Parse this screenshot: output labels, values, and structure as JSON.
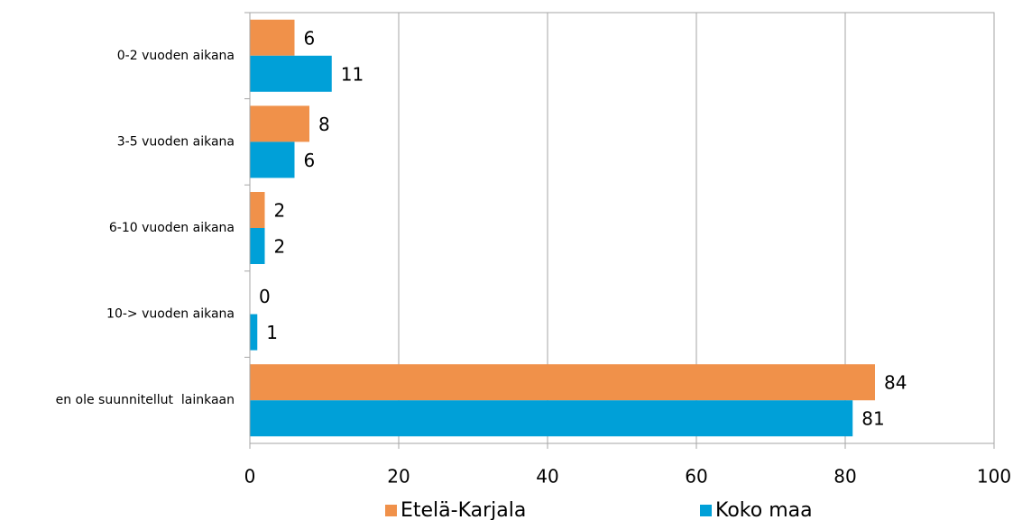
{
  "chart_data": {
    "type": "hbar",
    "categories": [
      "0-2 vuoden aikana",
      "3-5 vuoden aikana",
      "6-10 vuoden aikana",
      "10-> vuoden aikana",
      "en ole suunnitellut  lainkaan"
    ],
    "series": [
      {
        "name": "Etelä-Karjala",
        "color": "#f0914a",
        "values": [
          6,
          8,
          2,
          0,
          84
        ]
      },
      {
        "name": "Koko maa",
        "color": "#00a0d8",
        "values": [
          11,
          6,
          2,
          1,
          81
        ]
      }
    ],
    "xlim": [
      0,
      100
    ],
    "xticks": [
      0,
      20,
      40,
      60,
      80,
      100
    ],
    "grid": true
  }
}
